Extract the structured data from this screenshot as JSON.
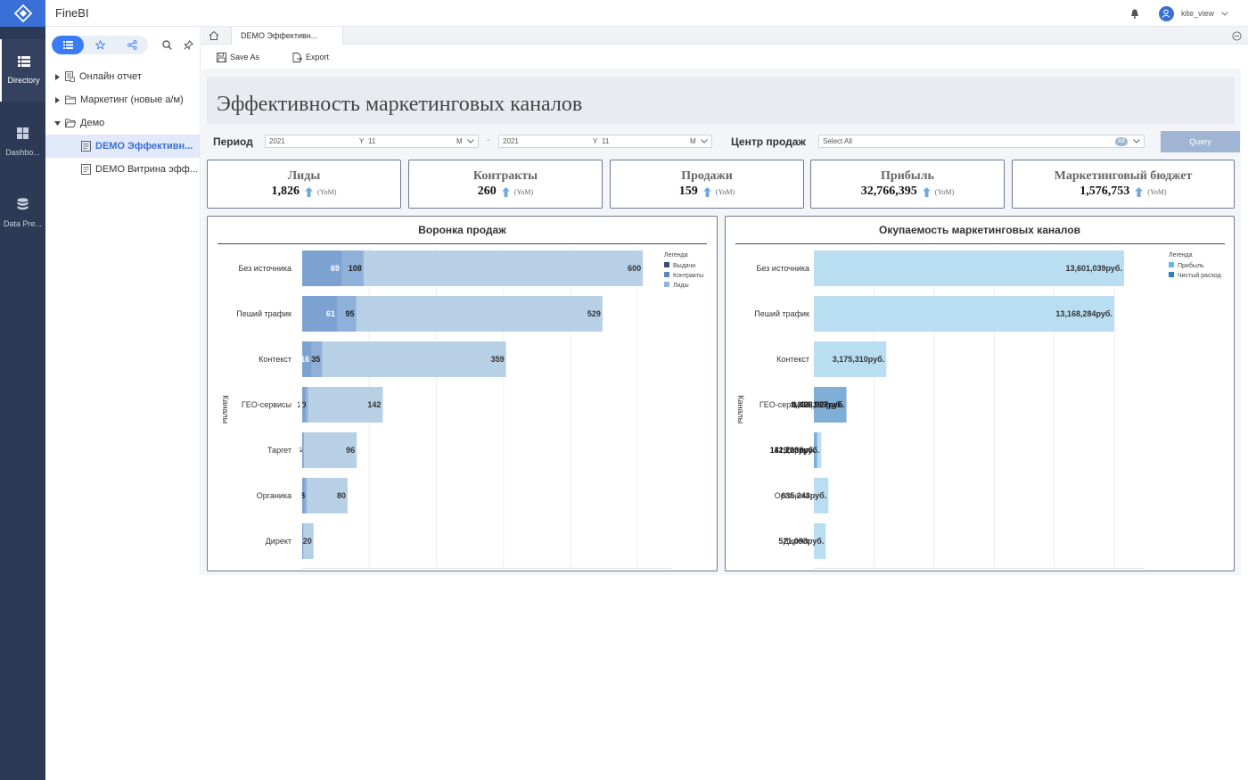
{
  "app": {
    "name": "FineBI"
  },
  "nav": {
    "items": [
      {
        "label": "Directory",
        "icon": "list-icon",
        "active": true
      },
      {
        "label": "Dashboard",
        "icon": "dashboard-icon",
        "active": false
      },
      {
        "label": "Data Preparation",
        "icon": "database-icon",
        "active": false
      }
    ],
    "directory_label": "Directory",
    "dashboard_label": "Dashbo...",
    "data_label": "Data Pre..."
  },
  "topbar": {
    "user": "kite_view",
    "bell_icon": "bell-icon",
    "user_icon": "user-icon"
  },
  "tree": {
    "items": [
      {
        "label": "Онлайн отчет",
        "type": "report"
      },
      {
        "label": "Маркетинг (новые а/м)",
        "type": "folder"
      },
      {
        "label": "Демо",
        "type": "folder-open"
      },
      {
        "label": "DEMO Эффективн...",
        "type": "dashboard",
        "selected": true
      },
      {
        "label": "DEMO Витрина эфф...",
        "type": "dashboard"
      }
    ]
  },
  "tabs": {
    "active": "DEMO Эффективн..."
  },
  "toolbar": {
    "save_as": "Save As",
    "export": "Export"
  },
  "dashboard": {
    "title": "Эффективность маркетинговых каналов",
    "filters": {
      "period_label": "Период",
      "from": {
        "year": "2021",
        "y": "Y",
        "month": "11",
        "m": "M"
      },
      "dash": "-",
      "to": {
        "year": "2021",
        "y": "Y",
        "month": "11",
        "m": "M"
      },
      "center_label": "Центр продаж",
      "center_value": "Select All",
      "all_badge": "All",
      "query": "Query"
    },
    "kpis": [
      {
        "name": "Лиды",
        "value": "1,826",
        "yoy": "(YoM)"
      },
      {
        "name": "Контракты",
        "value": "260",
        "yoy": "(YoM)"
      },
      {
        "name": "Продажи",
        "value": "159",
        "yoy": "(YoM)"
      },
      {
        "name": "Прибыль",
        "value": "32,766,395",
        "yoy": "(YoM)"
      },
      {
        "name": "Маркетинговый бюджет",
        "value": "1,576,753",
        "yoy": "(YoM)"
      }
    ]
  },
  "colors": {
    "sidebar": "#2d3a55",
    "accent": "#3a7bfa",
    "funnel_leads": "#b8d0e6",
    "funnel_contracts": "#8fb0d8",
    "funnel_sales": "#7ba2d1",
    "profit": "#b9def2",
    "net_expense": "#7faed6"
  },
  "chart_data": [
    {
      "type": "bar",
      "orientation": "horizontal",
      "stacked": "overlay",
      "title": "Воронка продаж",
      "ylabel": "Каналы",
      "categories": [
        "Без источника",
        "Пеший трафик",
        "Контекст",
        "ГЕО-сервисы",
        "Таргет",
        "Органика",
        "Директ"
      ],
      "legend_title": "Легенда",
      "legend_position": "top-right",
      "legend_labels": [
        "Выдачи",
        "Контракты",
        "Лиды"
      ],
      "series": [
        {
          "name": "Лиды",
          "values": [
            600,
            529,
            359,
            142,
            96,
            80,
            20
          ]
        },
        {
          "name": "Контракты",
          "values": [
            108,
            95,
            35,
            10,
            3,
            8,
            null
          ]
        },
        {
          "name": "Выдачи",
          "values": [
            69,
            61,
            16,
            5,
            2,
            4,
            2
          ]
        }
      ],
      "xlim": [
        0,
        650
      ],
      "grid": true
    },
    {
      "type": "bar",
      "orientation": "horizontal",
      "stacked": "overlay",
      "title": "Окупаемость маркетинговых каналов",
      "ylabel": "Каналы",
      "categories": [
        "Без источника",
        "Пеший трафик",
        "Контекст",
        "ГЕО-сервисы",
        "Таргет",
        "Органика",
        "Директ"
      ],
      "legend_title": "Легенда",
      "legend_position": "top-right",
      "series": [
        {
          "name": "Прибыль",
          "values": [
            13601039,
            13168284,
            3175310,
            1336189,
            329237,
            635243,
            521093
          ],
          "labels": [
            "13,601,039руб.",
            "13,168,284руб.",
            "3,175,310руб.",
            "1,336,189руб.",
            "329,237руб.",
            "635,243руб.",
            "521,093руб."
          ]
        },
        {
          "name": "Чистый расход",
          "values": [
            null,
            null,
            null,
            1428927,
            141200,
            null,
            null
          ],
          "labels": [
            "",
            "",
            "",
            "1,428,927руб.",
            "141,200руб.",
            "",
            ""
          ]
        }
      ],
      "xlim": [
        0,
        14500000
      ],
      "grid": true
    }
  ]
}
